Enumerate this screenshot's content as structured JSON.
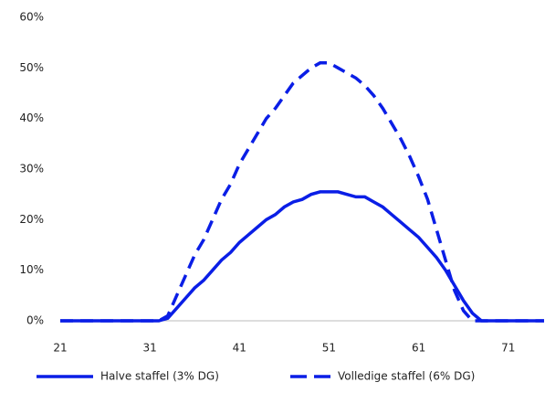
{
  "chart_data": {
    "type": "line",
    "x": [
      21,
      22,
      23,
      24,
      25,
      26,
      27,
      28,
      29,
      30,
      31,
      32,
      33,
      34,
      35,
      36,
      37,
      38,
      39,
      40,
      41,
      42,
      43,
      44,
      45,
      46,
      47,
      48,
      49,
      50,
      51,
      52,
      53,
      54,
      55,
      56,
      57,
      58,
      59,
      60,
      61,
      62,
      63,
      64,
      65,
      66,
      67,
      68,
      69,
      70,
      71,
      72,
      73,
      74,
      75
    ],
    "series": [
      {
        "name": "Halve staffel (3% DG)",
        "color": "#0a1ee6",
        "dash": false,
        "values": [
          0,
          0,
          0,
          0,
          0,
          0,
          0,
          0,
          0,
          0,
          0,
          0,
          0.5,
          2.5,
          4.5,
          6.5,
          8,
          10,
          12,
          13.5,
          15.5,
          17,
          18.5,
          20,
          21,
          22.5,
          23.5,
          24,
          25,
          25.5,
          25.5,
          25.5,
          25,
          24.5,
          24.5,
          23.5,
          22.5,
          21,
          19.5,
          18,
          16.5,
          14.5,
          12.5,
          10,
          7,
          4,
          1.5,
          0,
          0,
          0,
          0,
          0,
          0,
          0,
          0
        ]
      },
      {
        "name": "Volledige staffel (6% DG)",
        "color": "#0a1ee6",
        "dash": true,
        "values": [
          0,
          0,
          0,
          0,
          0,
          0,
          0,
          0,
          0,
          0,
          0,
          0,
          1,
          5,
          9,
          13,
          16,
          20,
          24,
          27,
          31,
          34,
          37,
          40,
          42,
          44.5,
          47,
          48.5,
          50,
          51,
          51,
          50,
          49,
          48,
          46.5,
          44.5,
          42,
          39,
          36,
          32.5,
          28.5,
          24,
          18,
          12,
          6,
          2,
          0,
          0,
          0,
          0,
          0,
          0,
          0,
          0,
          0
        ]
      }
    ],
    "xlim": [
      21,
      75
    ],
    "xticks": [
      21,
      31,
      41,
      51,
      61,
      71
    ],
    "ylim": [
      0,
      60
    ],
    "yticks": [
      {
        "value": 0,
        "label": "0%"
      },
      {
        "value": 10,
        "label": "10%"
      },
      {
        "value": 20,
        "label": "20%"
      },
      {
        "value": 30,
        "label": "30%"
      },
      {
        "value": 40,
        "label": "40%"
      },
      {
        "value": 50,
        "label": "50%"
      },
      {
        "value": 60,
        "label": "60%"
      }
    ],
    "legend": "bottom"
  }
}
